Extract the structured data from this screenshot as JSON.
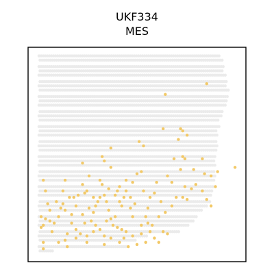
{
  "chart_data": {
    "type": "scatter",
    "title": "UKF334",
    "subtitle": "MES",
    "xlabel": "",
    "ylabel": "",
    "grid": false,
    "xlim": [
      0,
      100
    ],
    "ylim": [
      0,
      100
    ],
    "colors": {
      "background_spots": "#ebebeb",
      "highlight_spots": "#f2c968",
      "frame": "#000000"
    },
    "tissue_rows": [
      {
        "y": 96,
        "x": [
          [
            5,
            88
          ]
        ]
      },
      {
        "y": 94,
        "x": [
          [
            5,
            90
          ]
        ]
      },
      {
        "y": 91,
        "x": [
          [
            5,
            90
          ]
        ]
      },
      {
        "y": 89,
        "x": [
          [
            5,
            90
          ]
        ]
      },
      {
        "y": 87,
        "x": [
          [
            5,
            91
          ]
        ]
      },
      {
        "y": 84,
        "x": [
          [
            5,
            91
          ]
        ]
      },
      {
        "y": 82,
        "x": [
          [
            5,
            91
          ]
        ]
      },
      {
        "y": 80,
        "x": [
          [
            5,
            92
          ]
        ]
      },
      {
        "y": 77,
        "x": [
          [
            5,
            92
          ]
        ]
      },
      {
        "y": 75,
        "x": [
          [
            5,
            91
          ]
        ]
      },
      {
        "y": 73,
        "x": [
          [
            5,
            91
          ]
        ]
      },
      {
        "y": 70,
        "x": [
          [
            5,
            90
          ]
        ]
      },
      {
        "y": 68,
        "x": [
          [
            5,
            89
          ]
        ]
      },
      {
        "y": 66,
        "x": [
          [
            5,
            88
          ]
        ]
      },
      {
        "y": 63,
        "x": [
          [
            5,
            88
          ]
        ]
      },
      {
        "y": 61,
        "x": [
          [
            5,
            87
          ]
        ]
      },
      {
        "y": 59,
        "x": [
          [
            5,
            87
          ]
        ]
      },
      {
        "y": 56,
        "x": [
          [
            5,
            87
          ]
        ]
      },
      {
        "y": 54,
        "x": [
          [
            5,
            87
          ]
        ]
      },
      {
        "y": 52,
        "x": [
          [
            5,
            87
          ]
        ]
      },
      {
        "y": 49,
        "x": [
          [
            5,
            86
          ]
        ]
      },
      {
        "y": 47,
        "x": [
          [
            5,
            86
          ]
        ]
      },
      {
        "y": 45,
        "x": [
          [
            5,
            86
          ]
        ]
      },
      {
        "y": 42,
        "x": [
          [
            5,
            86
          ]
        ]
      },
      {
        "y": 40,
        "x": [
          [
            5,
            86
          ]
        ]
      },
      {
        "y": 38,
        "x": [
          [
            5,
            86
          ]
        ]
      },
      {
        "y": 35,
        "x": [
          [
            5,
            85
          ]
        ]
      },
      {
        "y": 33,
        "x": [
          [
            5,
            85
          ]
        ]
      },
      {
        "y": 31,
        "x": [
          [
            5,
            84
          ]
        ]
      },
      {
        "y": 28,
        "x": [
          [
            5,
            84
          ]
        ]
      },
      {
        "y": 26,
        "x": [
          [
            5,
            82
          ]
        ]
      },
      {
        "y": 24,
        "x": [
          [
            5,
            80
          ]
        ]
      },
      {
        "y": 21,
        "x": [
          [
            5,
            78
          ]
        ]
      },
      {
        "y": 19,
        "x": [
          [
            5,
            76
          ]
        ]
      },
      {
        "y": 17,
        "x": [
          [
            5,
            74
          ]
        ]
      },
      {
        "y": 14,
        "x": [
          [
            5,
            70
          ]
        ]
      },
      {
        "y": 12,
        "x": [
          [
            5,
            55
          ]
        ]
      },
      {
        "y": 10,
        "x": [
          [
            5,
            50
          ]
        ]
      },
      {
        "y": 7,
        "x": [
          [
            5,
            45
          ]
        ]
      },
      {
        "y": 5,
        "x": [
          [
            5,
            12
          ]
        ]
      }
    ],
    "highlight_points": [
      [
        82,
        83
      ],
      [
        63,
        78
      ],
      [
        73,
        59
      ],
      [
        70,
        62
      ],
      [
        71,
        61
      ],
      [
        69,
        57
      ],
      [
        62,
        62
      ],
      [
        51,
        56
      ],
      [
        53,
        54
      ],
      [
        38,
        53
      ],
      [
        34,
        49
      ],
      [
        35,
        47
      ],
      [
        67,
        48
      ],
      [
        71,
        49
      ],
      [
        72,
        48
      ],
      [
        80,
        48
      ],
      [
        95,
        44
      ],
      [
        70,
        43
      ],
      [
        81,
        41
      ],
      [
        84,
        40
      ],
      [
        72,
        35
      ],
      [
        66,
        37
      ],
      [
        64,
        40
      ],
      [
        59,
        37
      ],
      [
        50,
        41
      ],
      [
        45,
        38
      ],
      [
        52,
        42
      ],
      [
        48,
        37
      ],
      [
        25,
        46
      ],
      [
        28,
        40
      ],
      [
        33,
        38
      ],
      [
        25,
        36
      ],
      [
        26,
        32
      ],
      [
        27,
        33
      ],
      [
        21,
        30
      ],
      [
        19,
        30
      ],
      [
        16,
        33
      ],
      [
        17,
        38
      ],
      [
        8,
        33
      ],
      [
        7,
        38
      ],
      [
        6,
        21
      ],
      [
        7,
        17
      ],
      [
        10,
        19
      ],
      [
        12,
        18
      ],
      [
        14,
        21
      ],
      [
        17,
        24
      ],
      [
        16,
        27
      ],
      [
        22,
        26
      ],
      [
        23,
        31
      ],
      [
        28,
        25
      ],
      [
        30,
        23
      ],
      [
        31,
        26
      ],
      [
        33,
        30
      ],
      [
        35,
        31
      ],
      [
        36,
        28
      ],
      [
        37,
        24
      ],
      [
        38,
        20
      ],
      [
        39,
        17
      ],
      [
        41,
        16
      ],
      [
        43,
        15
      ],
      [
        45,
        14
      ],
      [
        44,
        11
      ],
      [
        42,
        9
      ],
      [
        38,
        11
      ],
      [
        35,
        12
      ],
      [
        33,
        15
      ],
      [
        31,
        17
      ],
      [
        29,
        19
      ],
      [
        27,
        12
      ],
      [
        27,
        9
      ],
      [
        24,
        13
      ],
      [
        18,
        13
      ],
      [
        17,
        10
      ],
      [
        14,
        9
      ],
      [
        7,
        9
      ],
      [
        7,
        6
      ],
      [
        35,
        8
      ],
      [
        46,
        7
      ],
      [
        50,
        8
      ],
      [
        54,
        9
      ],
      [
        52,
        13
      ],
      [
        56,
        14
      ],
      [
        57,
        17
      ],
      [
        48,
        21
      ],
      [
        47,
        25
      ],
      [
        43,
        26
      ],
      [
        44,
        30
      ],
      [
        41,
        33
      ],
      [
        42,
        35
      ],
      [
        47,
        30
      ],
      [
        56,
        30
      ],
      [
        61,
        28
      ],
      [
        55,
        25
      ],
      [
        54,
        21
      ],
      [
        60,
        21
      ],
      [
        63,
        23
      ],
      [
        66,
        26
      ],
      [
        68,
        30
      ],
      [
        71,
        30
      ],
      [
        73,
        29
      ],
      [
        75,
        34
      ],
      [
        77,
        36
      ],
      [
        80,
        33
      ],
      [
        82,
        29
      ],
      [
        84,
        26
      ],
      [
        86,
        35
      ],
      [
        87,
        42
      ],
      [
        76,
        43
      ],
      [
        62,
        14
      ],
      [
        64,
        13
      ],
      [
        9,
        27
      ],
      [
        6,
        16
      ],
      [
        20,
        18
      ],
      [
        25,
        22
      ],
      [
        32,
        28
      ],
      [
        38,
        44
      ],
      [
        40,
        31
      ],
      [
        45,
        33
      ],
      [
        49,
        27
      ],
      [
        53,
        33
      ],
      [
        58,
        32
      ],
      [
        15,
        25
      ],
      [
        11,
        14
      ],
      [
        22,
        15
      ],
      [
        36,
        19
      ],
      [
        52,
        17
      ],
      [
        58,
        11
      ],
      [
        48,
        12
      ],
      [
        40,
        21
      ],
      [
        30,
        14
      ],
      [
        20,
        22
      ],
      [
        26,
        18
      ],
      [
        42,
        28
      ],
      [
        37,
        34
      ],
      [
        34,
        36
      ],
      [
        55,
        18
      ],
      [
        60,
        9
      ],
      [
        18,
        7
      ],
      [
        22,
        11
      ],
      [
        13,
        28
      ],
      [
        10,
        24
      ],
      [
        8,
        20
      ],
      [
        30,
        30
      ]
    ]
  }
}
